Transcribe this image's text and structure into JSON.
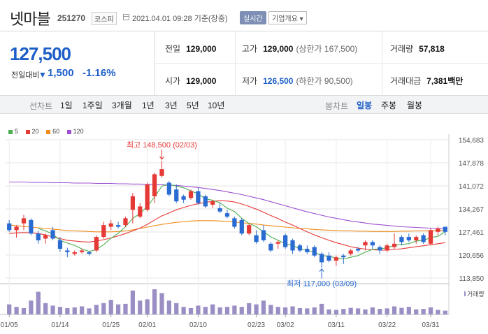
{
  "header": {
    "stock_name": "넷마블",
    "stock_code": "251270",
    "market_badge": "코스피",
    "date_text": "2021.04.01 09:28 기준(장중)",
    "realtime_button": "실시간",
    "corp_info_button": "기업개요 ▾"
  },
  "summary": {
    "current_price": "127,500",
    "prev_day_label": "전일대비",
    "change_arrow": "▼",
    "change_value": "1,500",
    "change_percent": "-1.16%",
    "stats": {
      "prev_close": {
        "label": "전일",
        "value": "129,000"
      },
      "high": {
        "label": "고가",
        "value": "129,000",
        "sub": "(상한가 167,500)"
      },
      "volume": {
        "label": "거래량",
        "value": "57,818"
      },
      "open": {
        "label": "시가",
        "value": "129,000"
      },
      "low": {
        "label": "저가",
        "value": "126,500",
        "sub": "(하한가 90,500)"
      },
      "trade_amount": {
        "label": "거래대금",
        "value": "7,381",
        "unit": "백만"
      }
    }
  },
  "period_bar": {
    "line_chart_label": "선차트",
    "line_periods": [
      "1일",
      "1주일",
      "3개월",
      "1년",
      "3년",
      "5년",
      "10년"
    ],
    "candle_chart_label": "봉차트",
    "candle_periods": [
      "일봉",
      "주봉",
      "월봉"
    ],
    "active_candle_period": "일봉"
  },
  "legend": [
    {
      "label": "5",
      "color": "#4caf50"
    },
    {
      "label": "20",
      "color": "#e53935"
    },
    {
      "label": "60",
      "color": "#f08c1c"
    },
    {
      "label": "120",
      "color": "#9c4fd0"
    }
  ],
  "colors": {
    "up": "#e53935",
    "down": "#2a6bd1",
    "volume": "#9b8ec4"
  },
  "chart_data": {
    "type": "candlestick",
    "y_ticks": [
      "154,683",
      "147,878",
      "141,072",
      "134,267",
      "127,461",
      "120,656",
      "113,850"
    ],
    "ylim": [
      113850,
      154683
    ],
    "x_tick_labels": [
      "01/05",
      "01/14",
      "01/25",
      "02/01",
      "02/10",
      "02/23",
      "03/02",
      "03/11",
      "03/22",
      "03/31"
    ],
    "x_tick_indices": [
      0,
      7,
      14,
      19,
      26,
      34,
      38,
      45,
      52,
      58
    ],
    "max_annotation": "최고 148,500 (02/03)",
    "min_annotation": "최저 117,000 (03/09)",
    "max_index": 21,
    "min_index": 43,
    "volume_label": "거래량",
    "candles": [
      {
        "o": 130000,
        "h": 131000,
        "l": 127500,
        "c": 128000
      },
      {
        "o": 128000,
        "h": 129500,
        "l": 125800,
        "c": 129000
      },
      {
        "o": 130000,
        "h": 132500,
        "l": 128000,
        "c": 131500
      },
      {
        "o": 131000,
        "h": 131500,
        "l": 126500,
        "c": 127000
      },
      {
        "o": 127000,
        "h": 127800,
        "l": 124000,
        "c": 125000
      },
      {
        "o": 125500,
        "h": 127000,
        "l": 124000,
        "c": 126500
      },
      {
        "o": 128000,
        "h": 129000,
        "l": 125000,
        "c": 125500
      },
      {
        "o": 125000,
        "h": 126000,
        "l": 121500,
        "c": 122500
      },
      {
        "o": 122000,
        "h": 122800,
        "l": 120000,
        "c": 121500
      },
      {
        "o": 121000,
        "h": 122000,
        "l": 120500,
        "c": 121500
      },
      {
        "o": 121500,
        "h": 122500,
        "l": 121000,
        "c": 122000
      },
      {
        "o": 121500,
        "h": 122000,
        "l": 120500,
        "c": 121000
      },
      {
        "o": 122000,
        "h": 126500,
        "l": 121500,
        "c": 126000
      },
      {
        "o": 126000,
        "h": 130500,
        "l": 125500,
        "c": 129500
      },
      {
        "o": 129000,
        "h": 131000,
        "l": 128000,
        "c": 130000
      },
      {
        "o": 129500,
        "h": 130500,
        "l": 128500,
        "c": 129000
      },
      {
        "o": 129500,
        "h": 132000,
        "l": 129000,
        "c": 131500
      },
      {
        "o": 134000,
        "h": 139000,
        "l": 130000,
        "c": 138000
      },
      {
        "o": 132000,
        "h": 136000,
        "l": 131500,
        "c": 135000
      },
      {
        "o": 134000,
        "h": 142000,
        "l": 133500,
        "c": 141500
      },
      {
        "o": 138000,
        "h": 145000,
        "l": 136000,
        "c": 144500
      },
      {
        "o": 144000,
        "h": 148500,
        "l": 143500,
        "c": 146000
      },
      {
        "o": 142000,
        "h": 142500,
        "l": 138000,
        "c": 138500
      },
      {
        "o": 140000,
        "h": 141500,
        "l": 136000,
        "c": 136500
      },
      {
        "o": 138000,
        "h": 138500,
        "l": 136000,
        "c": 137000
      },
      {
        "o": 137500,
        "h": 140000,
        "l": 137000,
        "c": 139500
      },
      {
        "o": 139500,
        "h": 140500,
        "l": 135500,
        "c": 136000
      },
      {
        "o": 138000,
        "h": 138500,
        "l": 134500,
        "c": 135000
      },
      {
        "o": 135500,
        "h": 137000,
        "l": 134500,
        "c": 136500
      },
      {
        "o": 134500,
        "h": 136000,
        "l": 133000,
        "c": 133500
      },
      {
        "o": 133000,
        "h": 134000,
        "l": 131500,
        "c": 132000
      },
      {
        "o": 131500,
        "h": 132000,
        "l": 128500,
        "c": 129000
      },
      {
        "o": 131000,
        "h": 131500,
        "l": 126500,
        "c": 127000
      },
      {
        "o": 127000,
        "h": 130000,
        "l": 126500,
        "c": 129500
      },
      {
        "o": 126500,
        "h": 128000,
        "l": 124000,
        "c": 124500
      },
      {
        "o": 128000,
        "h": 129500,
        "l": 124500,
        "c": 125000
      },
      {
        "o": 124000,
        "h": 124500,
        "l": 121500,
        "c": 122000
      },
      {
        "o": 124000,
        "h": 125000,
        "l": 122500,
        "c": 124500
      },
      {
        "o": 126500,
        "h": 127000,
        "l": 122500,
        "c": 123000
      },
      {
        "o": 125000,
        "h": 125500,
        "l": 121000,
        "c": 122000
      },
      {
        "o": 123500,
        "h": 124000,
        "l": 121500,
        "c": 122000
      },
      {
        "o": 122500,
        "h": 123500,
        "l": 121000,
        "c": 121500
      },
      {
        "o": 123000,
        "h": 123500,
        "l": 120000,
        "c": 120500
      },
      {
        "o": 121000,
        "h": 121500,
        "l": 117000,
        "c": 118500
      },
      {
        "o": 120500,
        "h": 121500,
        "l": 118500,
        "c": 119000
      },
      {
        "o": 119000,
        "h": 120500,
        "l": 117500,
        "c": 120000
      },
      {
        "o": 120500,
        "h": 121000,
        "l": 118000,
        "c": 120000
      },
      {
        "o": 121000,
        "h": 122500,
        "l": 120500,
        "c": 122000
      },
      {
        "o": 122500,
        "h": 123000,
        "l": 121500,
        "c": 122000
      },
      {
        "o": 123500,
        "h": 125000,
        "l": 122000,
        "c": 124500
      },
      {
        "o": 124500,
        "h": 125000,
        "l": 122500,
        "c": 123500
      },
      {
        "o": 123000,
        "h": 123500,
        "l": 121000,
        "c": 122000
      },
      {
        "o": 122000,
        "h": 124000,
        "l": 121500,
        "c": 123500
      },
      {
        "o": 123000,
        "h": 127000,
        "l": 122500,
        "c": 124000
      },
      {
        "o": 126000,
        "h": 126500,
        "l": 123500,
        "c": 124500
      },
      {
        "o": 126000,
        "h": 127000,
        "l": 124500,
        "c": 125000
      },
      {
        "o": 125000,
        "h": 126500,
        "l": 124000,
        "c": 126000
      },
      {
        "o": 126500,
        "h": 127000,
        "l": 124000,
        "c": 124500
      },
      {
        "o": 124000,
        "h": 128500,
        "l": 123500,
        "c": 128000
      },
      {
        "o": 127500,
        "h": 129000,
        "l": 126500,
        "c": 128500
      },
      {
        "o": 129000,
        "h": 129000,
        "l": 126500,
        "c": 127500
      }
    ],
    "ma5": [
      null,
      null,
      null,
      null,
      128500,
      127800,
      126800,
      125000,
      124200,
      123500,
      122500,
      121700,
      122300,
      123700,
      125600,
      127100,
      129000,
      131500,
      132900,
      135000,
      137800,
      141000,
      141500,
      141000,
      140500,
      139600,
      138700,
      137300,
      136800,
      136100,
      134500,
      133500,
      131500,
      130000,
      129000,
      127500,
      126000,
      125000,
      124000,
      123500,
      122500,
      122000,
      121500,
      120500,
      120300,
      119800,
      119500,
      120000,
      120500,
      121500,
      122300,
      122500,
      122800,
      123500,
      123800,
      124000,
      124800,
      125000,
      125800,
      126200,
      127500
    ],
    "ma20": [
      127000,
      127200,
      127300,
      127200,
      127000,
      126600,
      126000,
      125500,
      125000,
      124800,
      124600,
      124500,
      124800,
      125200,
      125700,
      126300,
      127000,
      127800,
      128600,
      129700,
      131000,
      132200,
      133100,
      134000,
      134700,
      135300,
      135800,
      136200,
      136500,
      136700,
      136600,
      136300,
      135700,
      135000,
      134200,
      133300,
      132300,
      131400,
      130400,
      129500,
      128500,
      127500,
      126600,
      125800,
      125000,
      124300,
      123700,
      123100,
      122700,
      122400,
      122200,
      122100,
      122100,
      122300,
      122500,
      122800,
      123100,
      123400,
      123700,
      124000,
      124300
    ],
    "ma60": [
      129500,
      129300,
      129100,
      128900,
      128700,
      128500,
      128300,
      128100,
      127900,
      127800,
      127700,
      127600,
      127500,
      127500,
      127500,
      127600,
      127800,
      128100,
      128500,
      128900,
      129300,
      129700,
      130000,
      130300,
      130500,
      130700,
      130800,
      130800,
      130800,
      130700,
      130600,
      130400,
      130200,
      130000,
      129800,
      129500,
      129300,
      129100,
      128900,
      128700,
      128500,
      128400,
      128200,
      128100,
      128000,
      127900,
      127800,
      127800,
      127700,
      127700,
      127600,
      127600,
      127600,
      127600,
      127700,
      127700,
      127800,
      127800,
      127900,
      127900,
      128000
    ],
    "ma120": [
      142200,
      142200,
      142200,
      142100,
      142100,
      142100,
      142000,
      142000,
      142000,
      141900,
      141900,
      141900,
      141800,
      141800,
      141800,
      141700,
      141700,
      141600,
      141600,
      141500,
      141500,
      141400,
      141300,
      141200,
      141000,
      140800,
      140600,
      140300,
      140000,
      139700,
      139300,
      138900,
      138500,
      138000,
      137500,
      137000,
      136400,
      135800,
      135200,
      134600,
      134000,
      133400,
      132900,
      132400,
      131900,
      131500,
      131100,
      130700,
      130400,
      130100,
      129800,
      129600,
      129400,
      129200,
      129000,
      128900,
      128800,
      128700,
      128600,
      128500,
      128400
    ],
    "volumes": [
      40,
      30,
      25,
      55,
      90,
      45,
      35,
      30,
      25,
      28,
      32,
      24,
      38,
      45,
      58,
      40,
      42,
      95,
      55,
      60,
      100,
      85,
      55,
      45,
      30,
      25,
      35,
      30,
      40,
      28,
      30,
      35,
      30,
      45,
      40,
      55,
      38,
      30,
      28,
      32,
      25,
      24,
      28,
      42,
      20,
      18,
      22,
      26,
      24,
      20,
      28,
      22,
      24,
      32,
      26,
      30,
      20,
      22,
      28,
      18,
      15
    ]
  }
}
